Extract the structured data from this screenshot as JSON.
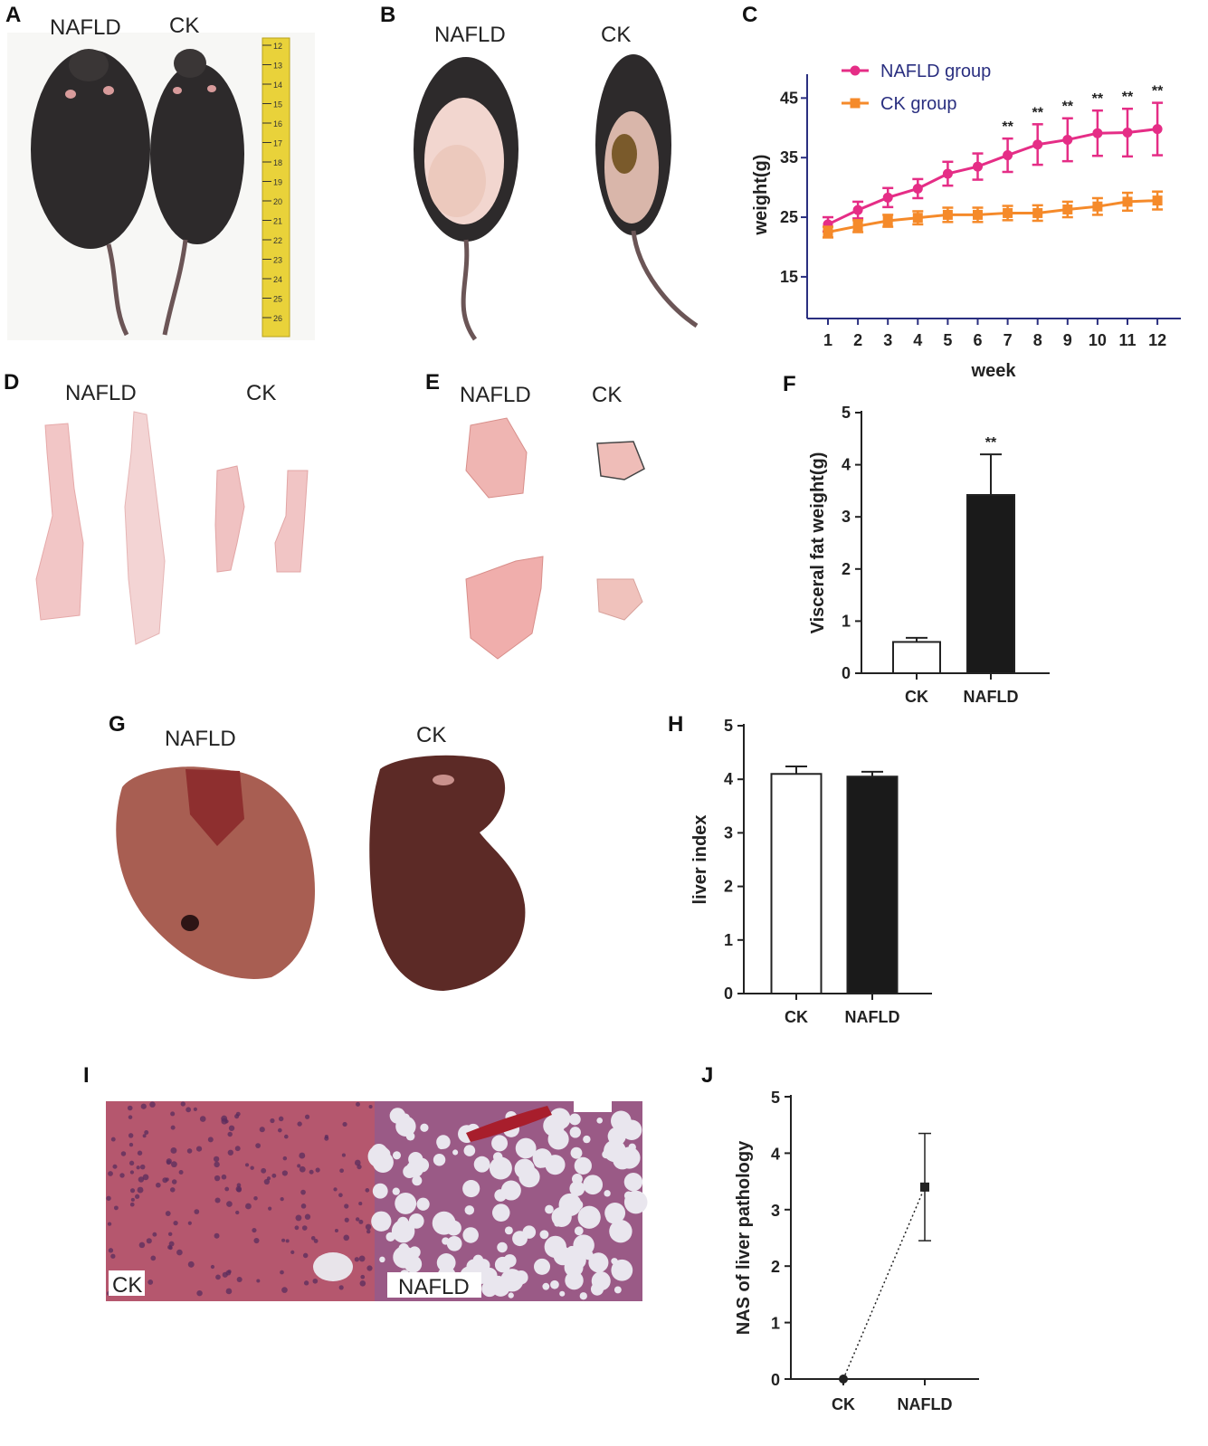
{
  "figure": {
    "panels": {
      "A": {
        "letter": "A",
        "labels": [
          "NAFLD",
          "CK"
        ],
        "ruler_ticks": [
          "12",
          "13",
          "14",
          "15",
          "16",
          "17",
          "18",
          "19",
          "20",
          "21",
          "22",
          "23",
          "24",
          "25",
          "26"
        ]
      },
      "B": {
        "letter": "B",
        "labels": [
          "NAFLD",
          "CK"
        ]
      },
      "C": {
        "letter": "C"
      },
      "D": {
        "letter": "D",
        "labels": [
          "NAFLD",
          "CK"
        ]
      },
      "E": {
        "letter": "E",
        "labels": [
          "NAFLD",
          "CK"
        ]
      },
      "F": {
        "letter": "F"
      },
      "G": {
        "letter": "G",
        "labels": [
          "NAFLD",
          "CK"
        ]
      },
      "H": {
        "letter": "H"
      },
      "I": {
        "letter": "I",
        "labels": [
          "CK",
          "NAFLD"
        ]
      },
      "J": {
        "letter": "J"
      }
    }
  },
  "colors": {
    "nafld_line": "#e52d86",
    "ck_line": "#f58a2a",
    "axis": "#2a2f80",
    "bar_dark": "#1a1a1a",
    "bar_light": "#ffffff",
    "he_ck": "#b5576e",
    "he_nafld": "#9a5a86",
    "mouse_fur": "#2d2a2b",
    "fat_tissue": "#f2c6c6",
    "liver_nafld": "#a85e52",
    "liver_ck": "#5c2a26",
    "ruler": "#e9d23a"
  },
  "chart_data": [
    {
      "panel": "C",
      "type": "line",
      "xlabel": "week",
      "ylabel": "weight(g)",
      "x": [
        1,
        2,
        3,
        4,
        5,
        6,
        7,
        8,
        9,
        10,
        11,
        12
      ],
      "x_ticks": [
        "1",
        "2",
        "3",
        "4",
        "5",
        "6",
        "7",
        "8",
        "9",
        "10",
        "11",
        "12"
      ],
      "yticks": [
        15,
        25,
        35,
        45
      ],
      "ylim": [
        8,
        49
      ],
      "series": [
        {
          "name": "NAFLD group",
          "marker": "circle",
          "values": [
            23.8,
            26.2,
            28.3,
            29.8,
            32.3,
            33.5,
            35.4,
            37.2,
            38.0,
            39.1,
            39.2,
            39.8
          ],
          "errors": [
            1.2,
            1.4,
            1.6,
            1.6,
            2.0,
            2.2,
            2.8,
            3.4,
            3.6,
            3.8,
            4.0,
            4.4
          ]
        },
        {
          "name": "CK group",
          "marker": "square",
          "values": [
            22.5,
            23.5,
            24.4,
            24.9,
            25.4,
            25.4,
            25.7,
            25.7,
            26.3,
            26.8,
            27.6,
            27.8
          ],
          "errors": [
            0.9,
            1.0,
            1.0,
            1.1,
            1.2,
            1.2,
            1.2,
            1.3,
            1.3,
            1.4,
            1.5,
            1.5
          ]
        }
      ],
      "annotations": [
        {
          "x": 7,
          "text": "**"
        },
        {
          "x": 8,
          "text": "**"
        },
        {
          "x": 9,
          "text": "**"
        },
        {
          "x": 10,
          "text": "**"
        },
        {
          "x": 11,
          "text": "**"
        },
        {
          "x": 12,
          "text": "**"
        }
      ],
      "legend": "top-left",
      "grid": false
    },
    {
      "panel": "F",
      "type": "bar",
      "categories": [
        "CK",
        "NAFLD"
      ],
      "values": [
        0.6,
        3.42
      ],
      "errors": [
        0.08,
        0.78
      ],
      "ylabel": "Visceral fat weight(g)",
      "xlabel": "",
      "yticks": [
        0,
        1,
        2,
        3,
        4,
        5
      ],
      "ylim": [
        0,
        5
      ],
      "annotations": [
        {
          "category": "NAFLD",
          "text": "**"
        }
      ],
      "grid": false
    },
    {
      "panel": "H",
      "type": "bar",
      "categories": [
        "CK",
        "NAFLD"
      ],
      "values": [
        4.1,
        4.05
      ],
      "errors": [
        0.14,
        0.09
      ],
      "ylabel": "liver index",
      "xlabel": "",
      "yticks": [
        0,
        1,
        2,
        3,
        4,
        5
      ],
      "ylim": [
        0,
        5
      ],
      "grid": false
    },
    {
      "panel": "J",
      "type": "scatter",
      "categories": [
        "CK",
        "NAFLD"
      ],
      "values": [
        0,
        3.4
      ],
      "errors": [
        0,
        0.95
      ],
      "ylabel": "NAS of liver pathology",
      "xlabel": "",
      "yticks": [
        0,
        1,
        2,
        3,
        4,
        5
      ],
      "ylim": [
        0,
        5
      ],
      "connector": "dotted",
      "grid": false
    }
  ]
}
